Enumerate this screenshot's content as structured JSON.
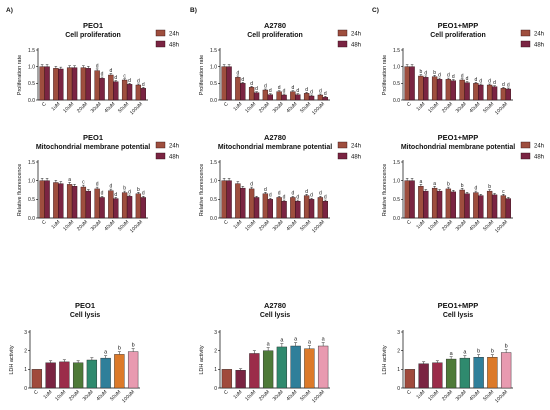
{
  "figure": {
    "colors": {
      "c24": "#9e4e3e",
      "c48": "#7a2442",
      "control": "#a04a3c",
      "lysis": [
        "#a04a3c",
        "#7a2442",
        "#9b2c4a",
        "#4e7a38",
        "#2f8a6e",
        "#2f7f9a",
        "#dc7a2a",
        "#e89ab0",
        "#bcc58a"
      ]
    }
  },
  "chart_data": [
    {
      "id": "A1",
      "panel_letter": "A)",
      "type": "bar",
      "title": "PEO1",
      "subtitle": "Cell proliferation",
      "ylabel": "Proliferation rate",
      "ylim": [
        0,
        1.5
      ],
      "yticks": [
        "0.0",
        "0.5",
        "1.0",
        "1.5"
      ],
      "categories": [
        "C",
        "1uM",
        "10uM",
        "20uM",
        "30uM",
        "40uM",
        "50uM",
        "100uM"
      ],
      "legend": [
        "24h",
        "48h"
      ],
      "series": [
        {
          "name": "24h",
          "values": [
            1.0,
            0.95,
            0.97,
            0.97,
            0.88,
            0.75,
            0.6,
            0.45
          ]
        },
        {
          "name": "48h",
          "values": [
            1.0,
            0.93,
            0.97,
            0.95,
            0.65,
            0.55,
            0.47,
            0.35
          ]
        }
      ],
      "annotations": [
        [
          "",
          ""
        ],
        [
          "",
          ""
        ],
        [
          "",
          ""
        ],
        [
          "",
          ""
        ],
        [
          "d",
          "d"
        ],
        [
          "d",
          "d"
        ],
        [
          "c",
          "d"
        ],
        [
          "d",
          "d"
        ]
      ]
    },
    {
      "id": "B1",
      "panel_letter": "B)",
      "type": "bar",
      "title": "A2780",
      "subtitle": "Cell proliferation",
      "ylabel": "Proliferation rate",
      "ylim": [
        0,
        1.5
      ],
      "yticks": [
        "0.0",
        "0.5",
        "1.0",
        "1.5"
      ],
      "categories": [
        "C",
        "1uM",
        "10uM",
        "20uM",
        "30uM",
        "40uM",
        "50uM",
        "100uM"
      ],
      "legend": [
        "24h",
        "48h"
      ],
      "series": [
        {
          "name": "24h",
          "values": [
            1.0,
            0.68,
            0.38,
            0.3,
            0.25,
            0.25,
            0.2,
            0.15
          ]
        },
        {
          "name": "48h",
          "values": [
            1.0,
            0.5,
            0.22,
            0.16,
            0.15,
            0.16,
            0.12,
            0.08
          ]
        }
      ],
      "annotations": [
        [
          "",
          ""
        ],
        [
          "d",
          "d"
        ],
        [
          "d",
          "d"
        ],
        [
          "d",
          "d"
        ],
        [
          "d",
          "d"
        ],
        [
          "d",
          "d"
        ],
        [
          "d",
          "d"
        ],
        [
          "d",
          "d"
        ]
      ]
    },
    {
      "id": "C1",
      "panel_letter": "C)",
      "type": "bar",
      "title": "PEO1+MPP",
      "subtitle": "Cell proliferation",
      "ylabel": "Proliferation rate",
      "ylim": [
        0,
        1.5
      ],
      "yticks": [
        "0.0",
        "0.5",
        "1.0",
        "1.5"
      ],
      "categories": [
        "C",
        "1uM",
        "10uM",
        "20uM",
        "30uM",
        "40uM",
        "50uM",
        "100uM"
      ],
      "legend": [
        "24h",
        "48h"
      ],
      "series": [
        {
          "name": "24h",
          "values": [
            1.0,
            0.72,
            0.7,
            0.62,
            0.6,
            0.5,
            0.45,
            0.35
          ]
        },
        {
          "name": "48h",
          "values": [
            1.0,
            0.68,
            0.62,
            0.58,
            0.52,
            0.45,
            0.4,
            0.33
          ]
        }
      ],
      "annotations": [
        [
          "",
          ""
        ],
        [
          "b",
          "d"
        ],
        [
          "b",
          "d"
        ],
        [
          "d",
          "d"
        ],
        [
          "d",
          "d"
        ],
        [
          "d",
          "d"
        ],
        [
          "d",
          "d"
        ],
        [
          "d",
          "d"
        ]
      ]
    },
    {
      "id": "A2",
      "type": "bar",
      "title": "PEO1",
      "subtitle": "Mitochondrial membrane potential",
      "ylabel": "Relative fluorescence",
      "ylim": [
        0,
        1.5
      ],
      "yticks": [
        "0.0",
        "0.5",
        "1.0",
        "1.5"
      ],
      "categories": [
        "C",
        "1uM",
        "10uM",
        "20uM",
        "30uM",
        "40uM",
        "50uM",
        "100uM"
      ],
      "legend": [
        "24h",
        "48h"
      ],
      "series": [
        {
          "name": "24h",
          "values": [
            1.0,
            0.95,
            0.9,
            0.83,
            0.78,
            0.73,
            0.68,
            0.65
          ]
        },
        {
          "name": "48h",
          "values": [
            1.0,
            0.92,
            0.85,
            0.72,
            0.55,
            0.52,
            0.58,
            0.55
          ]
        }
      ],
      "annotations": [
        [
          "",
          ""
        ],
        [
          "",
          ""
        ],
        [
          "a",
          ""
        ],
        [
          "c",
          ""
        ],
        [
          "d",
          "d"
        ],
        [
          "d",
          "d"
        ],
        [
          "b",
          "d"
        ],
        [
          "b",
          "d"
        ]
      ]
    },
    {
      "id": "B2",
      "type": "bar",
      "title": "A2780",
      "subtitle": "Mitochondrial membrane potential",
      "ylabel": "Relative fluorescence",
      "ylim": [
        0,
        1.5
      ],
      "yticks": [
        "0.0",
        "0.5",
        "1.0",
        "1.5"
      ],
      "categories": [
        "C",
        "1uM",
        "10uM",
        "20uM",
        "30uM",
        "40uM",
        "50uM",
        "100uM"
      ],
      "legend": [
        "24h",
        "48h"
      ],
      "series": [
        {
          "name": "24h",
          "values": [
            1.0,
            0.92,
            0.78,
            0.65,
            0.55,
            0.55,
            0.6,
            0.55
          ]
        },
        {
          "name": "48h",
          "values": [
            1.0,
            0.8,
            0.55,
            0.5,
            0.45,
            0.45,
            0.5,
            0.45
          ]
        }
      ],
      "annotations": [
        [
          "",
          ""
        ],
        [
          "",
          ""
        ],
        [
          "d",
          ""
        ],
        [
          "d",
          "d"
        ],
        [
          "d",
          "d"
        ],
        [
          "d",
          "d"
        ],
        [
          "d",
          "d"
        ],
        [
          "d",
          "d"
        ]
      ]
    },
    {
      "id": "C2",
      "type": "bar",
      "title": "PEO1+MPP",
      "subtitle": "Mitochondrial membrane potential",
      "ylabel": "Relative fluorescence",
      "ylim": [
        0,
        1.5
      ],
      "yticks": [
        "0.0",
        "0.5",
        "1.0",
        "1.5"
      ],
      "categories": [
        "C",
        "1uM",
        "10uM",
        "20uM",
        "30uM",
        "40uM",
        "50uM",
        "100uM"
      ],
      "legend": [
        "24h",
        "48h"
      ],
      "series": [
        {
          "name": "24h",
          "values": [
            1.0,
            0.85,
            0.8,
            0.78,
            0.75,
            0.68,
            0.72,
            0.6
          ]
        },
        {
          "name": "48h",
          "values": [
            1.0,
            0.72,
            0.72,
            0.7,
            0.65,
            0.6,
            0.62,
            0.52
          ]
        }
      ],
      "annotations": [
        [
          "",
          ""
        ],
        [
          "a",
          ""
        ],
        [
          "a",
          ""
        ],
        [
          "b",
          ""
        ],
        [
          "b",
          ""
        ],
        [
          "d",
          ""
        ],
        [
          "b",
          ""
        ],
        [
          "c",
          ""
        ]
      ]
    },
    {
      "id": "A3",
      "type": "bar",
      "title": "PEO1",
      "subtitle": "Cell lysis",
      "ylabel": "LDH activity",
      "ylim": [
        0,
        3
      ],
      "yticks": [
        "0",
        "1",
        "2",
        "3"
      ],
      "categories": [
        "C",
        "1uM",
        "10uM",
        "20uM",
        "30uM",
        "40uM",
        "50uM",
        "100uM"
      ],
      "values": [
        1.0,
        1.35,
        1.4,
        1.35,
        1.5,
        1.6,
        1.8,
        1.95
      ],
      "annotations": [
        "",
        "",
        "",
        "",
        "",
        "a",
        "b",
        "b"
      ]
    },
    {
      "id": "B3",
      "type": "bar",
      "title": "A2780",
      "subtitle": "Cell lysis",
      "ylabel": "LDH activity",
      "ylim": [
        0,
        3
      ],
      "yticks": [
        "0",
        "1",
        "2",
        "3"
      ],
      "categories": [
        "C",
        "1uM",
        "10uM",
        "20uM",
        "30uM",
        "40uM",
        "50uM",
        "100uM"
      ],
      "values": [
        1.0,
        0.95,
        1.85,
        2.0,
        2.2,
        2.25,
        2.1,
        2.25
      ],
      "annotations": [
        "",
        "",
        "",
        "a",
        "a",
        "a",
        "a",
        "a"
      ]
    },
    {
      "id": "C3",
      "type": "bar",
      "title": "PEO1+MPP",
      "subtitle": "Cell lysis",
      "ylabel": "LDH activity",
      "ylim": [
        0,
        3
      ],
      "yticks": [
        "0",
        "1",
        "2",
        "3"
      ],
      "categories": [
        "C",
        "1uM",
        "10uM",
        "20uM",
        "30uM",
        "40uM",
        "50uM",
        "100uM"
      ],
      "values": [
        1.0,
        1.3,
        1.35,
        1.55,
        1.6,
        1.65,
        1.65,
        1.9
      ],
      "annotations": [
        "",
        "",
        "",
        "a",
        "a",
        "b",
        "b",
        "b"
      ]
    }
  ]
}
